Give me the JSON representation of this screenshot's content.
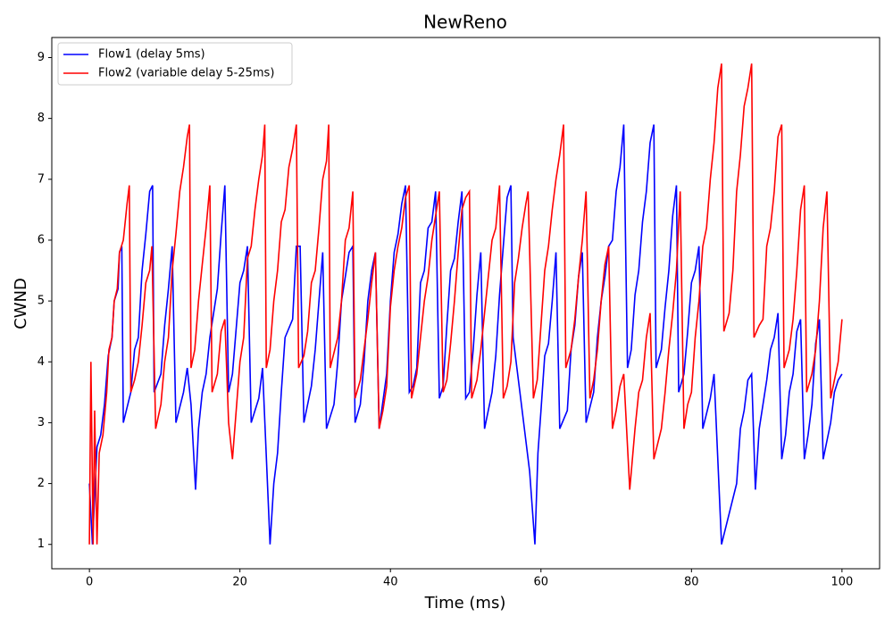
{
  "chart_data": {
    "type": "line",
    "title": "NewReno",
    "xlabel": "Time (ms)",
    "ylabel": "CWND",
    "xlim": [
      -5,
      105
    ],
    "ylim": [
      0.6,
      9.33
    ],
    "xticks": [
      0,
      20,
      40,
      60,
      80,
      100
    ],
    "yticks": [
      1,
      2,
      3,
      4,
      5,
      6,
      7,
      8,
      9
    ],
    "legend": "upper left",
    "series": [
      {
        "name": "Flow1 (delay 5ms)",
        "color": "#0000ff",
        "x": [
          0,
          0.4,
          1,
          1.5,
          2,
          2.5,
          3,
          3.3,
          3.8,
          4,
          4.3,
          4.5,
          5.5,
          6,
          6.5,
          7,
          7.5,
          8,
          8.4,
          8.6,
          9.5,
          10,
          10.5,
          11,
          11.5,
          12.5,
          13,
          13.5,
          14.1,
          14.5,
          15,
          15.5,
          16,
          17,
          17.5,
          18,
          18.5,
          19,
          20,
          20.5,
          21,
          21.5,
          22.5,
          23,
          24,
          24.5,
          25,
          25.5,
          26,
          27,
          27.5,
          28,
          28.5,
          29.5,
          30,
          30.5,
          31,
          31.5,
          32.5,
          33,
          33.5,
          34,
          34.5,
          35,
          35.3,
          36,
          36.5,
          37,
          37.5,
          38,
          38.5,
          39.5,
          40,
          40.5,
          41,
          41.5,
          42,
          42.5,
          43,
          43.5,
          44,
          44.5,
          45,
          45.5,
          46,
          46.5,
          47,
          47.5,
          48,
          48.5,
          49,
          49.5,
          50,
          50.5,
          51,
          51.5,
          52,
          52.5,
          53.5,
          54,
          54.5,
          55,
          55.5,
          56,
          56.3,
          57.2,
          58.5,
          59.2,
          59.6,
          60,
          60.5,
          61,
          61.5,
          62,
          62.5,
          63.5,
          64,
          64.5,
          65,
          65.5,
          66,
          67,
          67.5,
          68,
          68.5,
          69,
          69.5,
          70,
          70.5,
          71,
          71.5,
          72,
          72.5,
          73,
          73.5,
          74,
          74.5,
          75,
          75.3,
          76,
          76.5,
          77,
          77.5,
          78,
          78.3,
          79,
          79.5,
          80,
          80.5,
          81,
          81.5,
          82.5,
          83,
          84,
          86,
          86.5,
          87,
          87.5,
          88,
          88.5,
          89,
          89.5,
          90,
          90.5,
          91,
          91.5,
          92,
          92.5,
          93,
          93.5,
          94,
          94.5,
          95,
          95.5,
          96,
          96.5,
          97,
          97.5,
          98,
          98.5,
          99,
          99.5,
          100
        ],
        "values": [
          2,
          1,
          2.6,
          2.8,
          3.3,
          4.1,
          4.4,
          5,
          5.2,
          5.8,
          5.9,
          3,
          3.5,
          4.2,
          4.4,
          5.5,
          6.1,
          6.8,
          6.9,
          3.5,
          3.8,
          4.6,
          5.2,
          5.9,
          3,
          3.5,
          3.9,
          3.3,
          1.9,
          2.9,
          3.5,
          3.8,
          4.4,
          5.2,
          6.1,
          6.9,
          3.5,
          3.8,
          5.3,
          5.5,
          5.9,
          3,
          3.4,
          3.9,
          1,
          2,
          2.5,
          3.5,
          4.4,
          4.7,
          5.9,
          5.9,
          3,
          3.6,
          4.2,
          5,
          5.8,
          2.9,
          3.3,
          4,
          5,
          5.4,
          5.8,
          5.9,
          3,
          3.3,
          4,
          5,
          5.5,
          5.8,
          2.9,
          3.8,
          5,
          5.8,
          6.1,
          6.6,
          6.9,
          3.5,
          3.6,
          3.9,
          5.3,
          5.5,
          6.2,
          6.3,
          6.8,
          3.4,
          3.6,
          4.6,
          5.5,
          5.7,
          6.3,
          6.8,
          3.4,
          3.5,
          4.2,
          5.1,
          5.8,
          2.9,
          3.5,
          4.1,
          5.1,
          5.9,
          6.7,
          6.9,
          4.4,
          3.5,
          2.2,
          1,
          2.5,
          3.2,
          4.1,
          4.3,
          5,
          5.8,
          2.9,
          3.2,
          4.2,
          4.6,
          5.4,
          5.8,
          3,
          3.5,
          4.4,
          5,
          5.4,
          5.9,
          6,
          6.8,
          7.2,
          7.9,
          3.9,
          4.2,
          5.1,
          5.5,
          6.3,
          6.8,
          7.6,
          7.9,
          3.9,
          4.2,
          4.9,
          5.5,
          6.4,
          6.9,
          3.5,
          3.8,
          4.5,
          5.3,
          5.5,
          5.9,
          2.9,
          3.4,
          3.8,
          1,
          2,
          2.9,
          3.2,
          3.7,
          3.8,
          1.9,
          2.9,
          3.3,
          3.7,
          4.2,
          4.4,
          4.8,
          2.4,
          2.8,
          3.5,
          3.8,
          4.5,
          4.7,
          2.4,
          2.8,
          3.3,
          4.3,
          4.7,
          2.4,
          2.7,
          3,
          3.5,
          3.7,
          3.8
        ]
      },
      {
        "name": "Flow2 (variable delay 5-25ms)",
        "color": "#ff0000",
        "x": [
          0,
          0.2,
          0.5,
          0.7,
          1,
          1.3,
          1.8,
          2.3,
          2.6,
          3,
          3.3,
          3.7,
          4,
          4.5,
          5,
          5.3,
          5.5,
          6,
          6.5,
          7,
          7.5,
          8,
          8.3,
          8.8,
          9.5,
          10,
          10.5,
          11,
          11.5,
          12,
          12.5,
          13,
          13.3,
          13.5,
          14,
          14.5,
          15,
          15.5,
          16,
          16.3,
          17,
          17.5,
          18,
          18.5,
          19,
          19.5,
          20,
          20.5,
          21,
          21.5,
          22,
          22.5,
          23,
          23.3,
          23.5,
          24,
          24.5,
          25,
          25.5,
          26,
          26.5,
          27,
          27.5,
          27.8,
          28.5,
          29,
          29.5,
          30,
          30.5,
          31,
          31.5,
          31.8,
          32,
          33,
          33.5,
          34,
          34.5,
          35,
          35.3,
          36,
          36.5,
          37,
          37.5,
          38,
          38.5,
          39,
          39.5,
          40,
          40.5,
          41,
          41.5,
          42,
          42.5,
          42.8,
          43.5,
          44,
          44.5,
          45,
          45.5,
          46,
          46.5,
          47,
          47.5,
          48,
          48.5,
          49,
          49.5,
          50,
          50.5,
          50.8,
          51.5,
          52,
          52.5,
          53,
          53.5,
          54,
          54.5,
          55,
          55.5,
          56,
          56.5,
          57,
          57.5,
          58,
          58.3,
          59,
          59.5,
          60,
          60.5,
          61,
          61.5,
          62,
          62.5,
          63,
          63.3,
          64,
          64.5,
          65,
          65.5,
          66,
          66.5,
          67,
          67.5,
          68,
          68.5,
          69,
          69.5,
          70,
          70.5,
          71,
          71.8,
          72.5,
          73,
          73.5,
          74,
          74.5,
          75,
          76,
          76.5,
          77,
          77.5,
          78,
          78.5,
          79,
          79.5,
          80,
          80.5,
          81,
          81.5,
          82,
          82.5,
          83,
          83.5,
          84,
          84.3,
          85,
          85.5,
          86,
          86.5,
          87,
          87.5,
          88,
          88.3,
          89,
          89.5,
          90,
          90.5,
          91,
          91.5,
          92,
          92.3,
          93,
          93.5,
          94,
          94.5,
          95,
          95.3,
          96,
          96.5,
          97,
          97.5,
          98,
          98.5,
          99,
          99.5,
          100
        ],
        "values": [
          1,
          4,
          1,
          3.2,
          1,
          2.5,
          2.8,
          3.5,
          4.2,
          4.4,
          5,
          5.2,
          5.8,
          6,
          6.6,
          6.9,
          3.5,
          3.7,
          4,
          4.6,
          5.3,
          5.5,
          5.9,
          2.9,
          3.3,
          4,
          4.4,
          5.5,
          6.1,
          6.8,
          7.2,
          7.7,
          7.9,
          3.9,
          4.2,
          5,
          5.6,
          6.2,
          6.9,
          3.5,
          3.8,
          4.5,
          4.7,
          3,
          2.4,
          3.2,
          4,
          4.4,
          5.7,
          5.9,
          6.5,
          7,
          7.4,
          7.9,
          3.9,
          4.2,
          5,
          5.5,
          6.3,
          6.5,
          7.2,
          7.5,
          7.9,
          3.9,
          4.1,
          4.5,
          5.3,
          5.5,
          6.2,
          7,
          7.3,
          7.9,
          3.9,
          4.4,
          5,
          6,
          6.2,
          6.8,
          3.4,
          3.7,
          4.2,
          4.7,
          5.3,
          5.8,
          2.9,
          3.2,
          3.6,
          4.9,
          5.5,
          5.9,
          6.2,
          6.7,
          6.9,
          3.4,
          3.8,
          4.4,
          5,
          5.4,
          6,
          6.4,
          6.8,
          3.5,
          3.7,
          4.3,
          5,
          5.8,
          6.5,
          6.7,
          6.8,
          3.4,
          3.7,
          4.2,
          4.8,
          5.4,
          6,
          6.2,
          6.9,
          3.4,
          3.6,
          4,
          5.3,
          5.7,
          6.2,
          6.6,
          6.8,
          3.4,
          3.7,
          4.6,
          5.5,
          5.9,
          6.5,
          7,
          7.4,
          7.9,
          3.9,
          4.2,
          4.7,
          5.4,
          6,
          6.8,
          3.4,
          3.7,
          4.2,
          5,
          5.6,
          5.9,
          2.9,
          3.2,
          3.6,
          3.8,
          1.9,
          2.9,
          3.5,
          3.7,
          4.4,
          4.8,
          2.4,
          2.9,
          3.5,
          4.2,
          4.8,
          5.5,
          6.8,
          2.9,
          3.3,
          3.5,
          4.4,
          5,
          5.9,
          6.2,
          7,
          7.6,
          8.5,
          8.9,
          4.5,
          4.8,
          5.5,
          6.8,
          7.4,
          8.2,
          8.5,
          8.9,
          4.4,
          4.6,
          4.7,
          5.9,
          6.2,
          6.8,
          7.7,
          7.9,
          3.9,
          4.2,
          4.7,
          5.5,
          6.5,
          6.9,
          3.5,
          3.8,
          4.2,
          5,
          6.2,
          6.8,
          3.4,
          3.7,
          4,
          4.7
        ]
      }
    ]
  }
}
